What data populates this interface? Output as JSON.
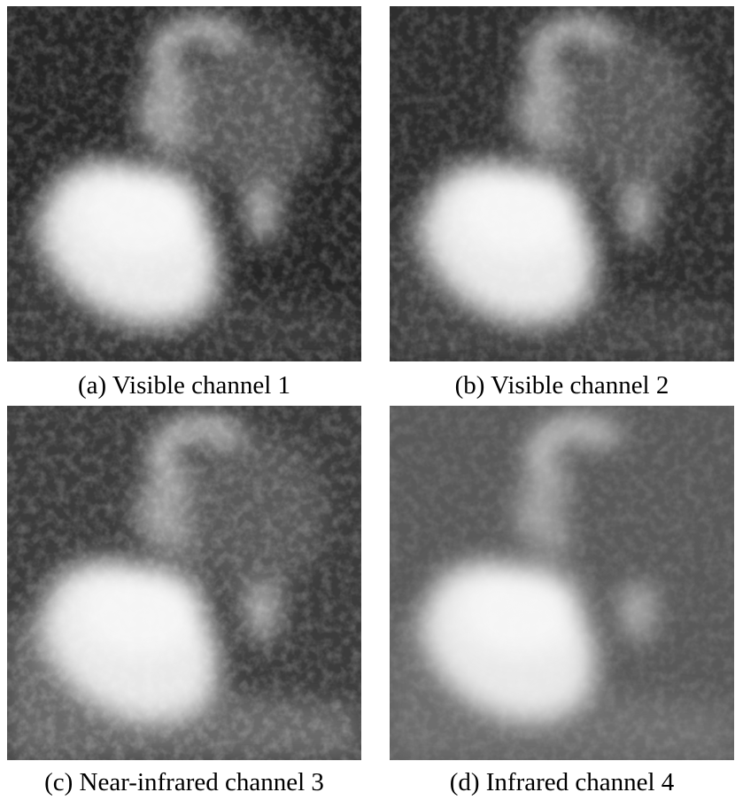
{
  "figure": {
    "panels": [
      {
        "caption": "(a) Visible channel 1"
      },
      {
        "caption": "(b) Visible channel 2"
      },
      {
        "caption": "(c) Near-infrared channel 3"
      },
      {
        "caption": "(d) Infrared channel 4"
      }
    ]
  }
}
